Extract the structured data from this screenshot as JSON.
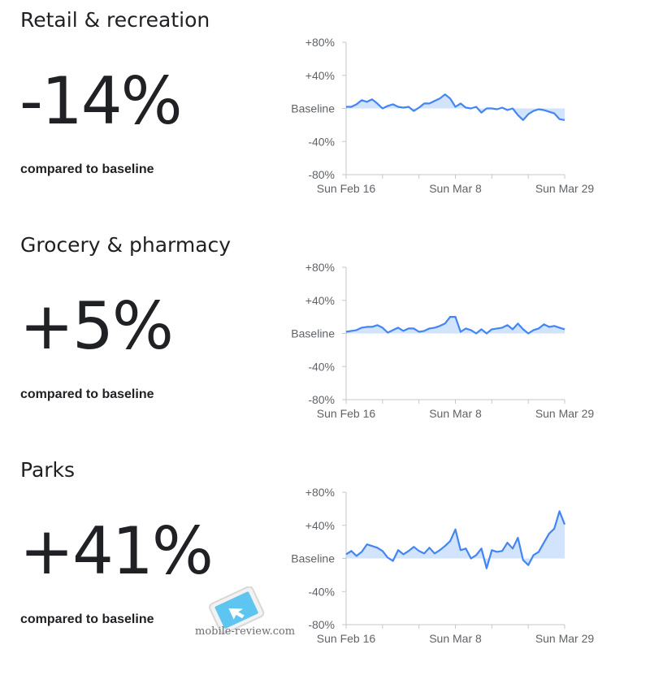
{
  "sections": [
    {
      "title": "Retail & recreation",
      "value": "-14%",
      "compared": "compared to baseline"
    },
    {
      "title": "Grocery & pharmacy",
      "value": "+5%",
      "compared": "compared to baseline"
    },
    {
      "title": "Parks",
      "value": "+41%",
      "compared": "compared to baseline"
    }
  ],
  "chart_data": [
    {
      "type": "area",
      "title": "Retail & recreation",
      "y_ticks": [
        "+80%",
        "+40%",
        "Baseline",
        "-40%",
        "-80%"
      ],
      "x_ticks": [
        "Sun Feb 16",
        "Sun Mar 8",
        "Sun Mar 29"
      ],
      "ylim": [
        -80,
        80
      ],
      "x": [
        "Feb 16",
        "Feb 17",
        "Feb 18",
        "Feb 19",
        "Feb 20",
        "Feb 21",
        "Feb 22",
        "Feb 23",
        "Feb 24",
        "Feb 25",
        "Feb 26",
        "Feb 27",
        "Feb 28",
        "Feb 29",
        "Mar 1",
        "Mar 2",
        "Mar 3",
        "Mar 4",
        "Mar 5",
        "Mar 6",
        "Mar 7",
        "Mar 8",
        "Mar 9",
        "Mar 10",
        "Mar 11",
        "Mar 12",
        "Mar 13",
        "Mar 14",
        "Mar 15",
        "Mar 16",
        "Mar 17",
        "Mar 18",
        "Mar 19",
        "Mar 20",
        "Mar 21",
        "Mar 22",
        "Mar 23",
        "Mar 24",
        "Mar 25",
        "Mar 26",
        "Mar 27",
        "Mar 28",
        "Mar 29"
      ],
      "values": [
        2,
        2,
        5,
        10,
        8,
        11,
        6,
        0,
        3,
        5,
        2,
        1,
        2,
        -3,
        1,
        6,
        6,
        9,
        12,
        17,
        12,
        2,
        6,
        1,
        0,
        2,
        -5,
        0,
        0,
        -1,
        1,
        -2,
        0,
        -8,
        -14,
        -7,
        -3,
        -1,
        -2,
        -4,
        -6,
        -13,
        -14
      ],
      "color": "#4285f4",
      "fill": "#d2e3fc"
    },
    {
      "type": "area",
      "title": "Grocery & pharmacy",
      "y_ticks": [
        "+80%",
        "+40%",
        "Baseline",
        "-40%",
        "-80%"
      ],
      "x_ticks": [
        "Sun Feb 16",
        "Sun Mar 8",
        "Sun Mar 29"
      ],
      "ylim": [
        -80,
        80
      ],
      "x": [
        "Feb 16",
        "Feb 17",
        "Feb 18",
        "Feb 19",
        "Feb 20",
        "Feb 21",
        "Feb 22",
        "Feb 23",
        "Feb 24",
        "Feb 25",
        "Feb 26",
        "Feb 27",
        "Feb 28",
        "Feb 29",
        "Mar 1",
        "Mar 2",
        "Mar 3",
        "Mar 4",
        "Mar 5",
        "Mar 6",
        "Mar 7",
        "Mar 8",
        "Mar 9",
        "Mar 10",
        "Mar 11",
        "Mar 12",
        "Mar 13",
        "Mar 14",
        "Mar 15",
        "Mar 16",
        "Mar 17",
        "Mar 18",
        "Mar 19",
        "Mar 20",
        "Mar 21",
        "Mar 22",
        "Mar 23",
        "Mar 24",
        "Mar 25",
        "Mar 26",
        "Mar 27",
        "Mar 28",
        "Mar 29"
      ],
      "values": [
        2,
        3,
        4,
        7,
        8,
        8,
        10,
        7,
        1,
        4,
        7,
        3,
        6,
        6,
        2,
        3,
        6,
        7,
        9,
        12,
        20,
        20,
        2,
        6,
        4,
        0,
        5,
        0,
        5,
        6,
        7,
        10,
        5,
        12,
        5,
        0,
        4,
        6,
        11,
        8,
        9,
        7,
        5
      ],
      "color": "#4285f4",
      "fill": "#d2e3fc"
    },
    {
      "type": "area",
      "title": "Parks",
      "y_ticks": [
        "+80%",
        "+40%",
        "Baseline",
        "-40%",
        "-80%"
      ],
      "x_ticks": [
        "Sun Feb 16",
        "Sun Mar 8",
        "Sun Mar 29"
      ],
      "ylim": [
        -80,
        80
      ],
      "x": [
        "Feb 16",
        "Feb 17",
        "Feb 18",
        "Feb 19",
        "Feb 20",
        "Feb 21",
        "Feb 22",
        "Feb 23",
        "Feb 24",
        "Feb 25",
        "Feb 26",
        "Feb 27",
        "Feb 28",
        "Feb 29",
        "Mar 1",
        "Mar 2",
        "Mar 3",
        "Mar 4",
        "Mar 5",
        "Mar 6",
        "Mar 7",
        "Mar 8",
        "Mar 9",
        "Mar 10",
        "Mar 11",
        "Mar 12",
        "Mar 13",
        "Mar 14",
        "Mar 15",
        "Mar 16",
        "Mar 17",
        "Mar 18",
        "Mar 19",
        "Mar 20",
        "Mar 21",
        "Mar 22",
        "Mar 23",
        "Mar 24",
        "Mar 25",
        "Mar 26",
        "Mar 27",
        "Mar 28",
        "Mar 29"
      ],
      "values": [
        5,
        9,
        3,
        8,
        17,
        15,
        13,
        9,
        1,
        -3,
        10,
        5,
        9,
        14,
        9,
        6,
        13,
        6,
        10,
        15,
        21,
        35,
        10,
        12,
        0,
        4,
        12,
        -12,
        10,
        8,
        9,
        19,
        12,
        25,
        -2,
        -8,
        4,
        8,
        19,
        30,
        36,
        57,
        41
      ],
      "color": "#4285f4",
      "fill": "#d2e3fc"
    }
  ],
  "watermark": {
    "text": "mobile-review.com",
    "colors": {
      "screen": "#5ec4f0",
      "body": "#f2f2f2"
    }
  }
}
